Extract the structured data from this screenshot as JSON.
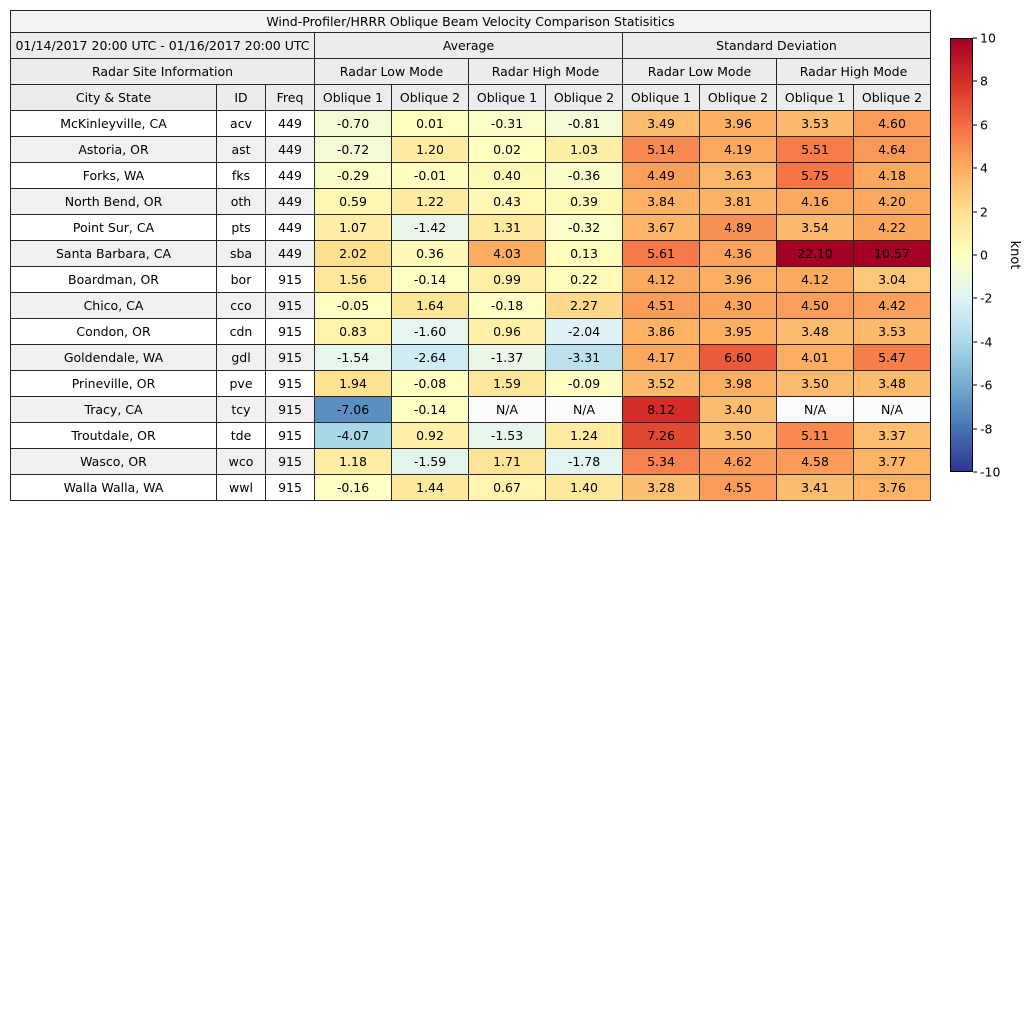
{
  "chart_data": {
    "type": "table",
    "title": "Wind-Profiler/HRRR Oblique Beam Velocity Comparison Statisitics",
    "period": "01/14/2017 20:00 UTC - 01/16/2017 20:00 UTC",
    "group_headers": {
      "average": "Average",
      "std_dev": "Standard Deviation",
      "site_info": "Radar Site Information"
    },
    "mode_headers": [
      "Radar Low Mode",
      "Radar High Mode",
      "Radar Low Mode",
      "Radar High Mode"
    ],
    "column_headers": {
      "city": "City & State",
      "id": "ID",
      "freq": "Freq"
    },
    "oblique_headers": [
      "Oblique 1",
      "Oblique 2",
      "Oblique 1",
      "Oblique 2",
      "Oblique 1",
      "Oblique 2",
      "Oblique 1",
      "Oblique 2"
    ],
    "rows": [
      {
        "city": "McKinleyville, CA",
        "id": "acv",
        "freq": "449",
        "values": [
          "-0.70",
          "0.01",
          "-0.31",
          "-0.81",
          "3.49",
          "3.96",
          "3.53",
          "4.60"
        ]
      },
      {
        "city": "Astoria, OR",
        "id": "ast",
        "freq": "449",
        "values": [
          "-0.72",
          "1.20",
          "0.02",
          "1.03",
          "5.14",
          "4.19",
          "5.51",
          "4.64"
        ]
      },
      {
        "city": "Forks, WA",
        "id": "fks",
        "freq": "449",
        "values": [
          "-0.29",
          "-0.01",
          "0.40",
          "-0.36",
          "4.49",
          "3.63",
          "5.75",
          "4.18"
        ]
      },
      {
        "city": "North Bend, OR",
        "id": "oth",
        "freq": "449",
        "values": [
          "0.59",
          "1.22",
          "0.43",
          "0.39",
          "3.84",
          "3.81",
          "4.16",
          "4.20"
        ]
      },
      {
        "city": "Point Sur, CA",
        "id": "pts",
        "freq": "449",
        "values": [
          "1.07",
          "-1.42",
          "1.31",
          "-0.32",
          "3.67",
          "4.89",
          "3.54",
          "4.22"
        ]
      },
      {
        "city": "Santa Barbara, CA",
        "id": "sba",
        "freq": "449",
        "values": [
          "2.02",
          "0.36",
          "4.03",
          "0.13",
          "5.61",
          "4.36",
          "22.10",
          "10.57"
        ]
      },
      {
        "city": "Boardman, OR",
        "id": "bor",
        "freq": "915",
        "values": [
          "1.56",
          "-0.14",
          "0.99",
          "0.22",
          "4.12",
          "3.96",
          "4.12",
          "3.04"
        ]
      },
      {
        "city": "Chico, CA",
        "id": "cco",
        "freq": "915",
        "values": [
          "-0.05",
          "1.64",
          "-0.18",
          "2.27",
          "4.51",
          "4.30",
          "4.50",
          "4.42"
        ]
      },
      {
        "city": "Condon, OR",
        "id": "cdn",
        "freq": "915",
        "values": [
          "0.83",
          "-1.60",
          "0.96",
          "-2.04",
          "3.86",
          "3.95",
          "3.48",
          "3.53"
        ]
      },
      {
        "city": "Goldendale, WA",
        "id": "gdl",
        "freq": "915",
        "values": [
          "-1.54",
          "-2.64",
          "-1.37",
          "-3.31",
          "4.17",
          "6.60",
          "4.01",
          "5.47"
        ]
      },
      {
        "city": "Prineville, OR",
        "id": "pve",
        "freq": "915",
        "values": [
          "1.94",
          "-0.08",
          "1.59",
          "-0.09",
          "3.52",
          "3.98",
          "3.50",
          "3.48"
        ]
      },
      {
        "city": "Tracy, CA",
        "id": "tcy",
        "freq": "915",
        "values": [
          "-7.06",
          "-0.14",
          "N/A",
          "N/A",
          "8.12",
          "3.40",
          "N/A",
          "N/A"
        ]
      },
      {
        "city": "Troutdale, OR",
        "id": "tde",
        "freq": "915",
        "values": [
          "-4.07",
          "0.92",
          "-1.53",
          "1.24",
          "7.26",
          "3.50",
          "5.11",
          "3.37"
        ]
      },
      {
        "city": "Wasco, OR",
        "id": "wco",
        "freq": "915",
        "values": [
          "1.18",
          "-1.59",
          "1.71",
          "-1.78",
          "5.34",
          "4.62",
          "4.58",
          "3.77"
        ]
      },
      {
        "city": "Walla Walla, WA",
        "id": "wwl",
        "freq": "915",
        "values": [
          "-0.16",
          "1.44",
          "0.67",
          "1.40",
          "3.28",
          "4.55",
          "3.41",
          "3.76"
        ]
      }
    ],
    "colorbar": {
      "label": "knot",
      "min": -10,
      "max": 10,
      "ticks": [
        "10",
        "8",
        "6",
        "4",
        "2",
        "0",
        "-2",
        "-4",
        "-6",
        "-8",
        "-10"
      ],
      "colormap": [
        "#313695",
        "#4575b4",
        "#74add1",
        "#abd9e9",
        "#e0f3f8",
        "#ffffbf",
        "#fee090",
        "#fdae61",
        "#f46d43",
        "#d73027",
        "#a50026"
      ],
      "na_color": "#fbfbfb"
    }
  }
}
